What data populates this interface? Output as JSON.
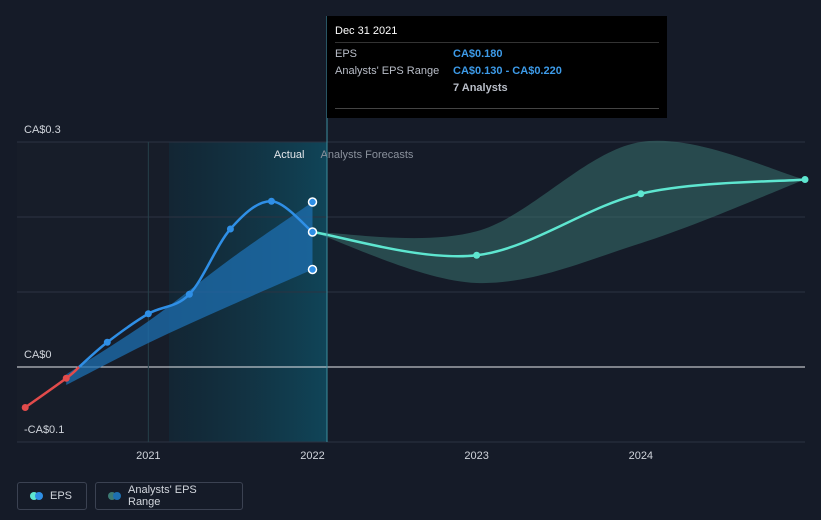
{
  "chart_data": {
    "type": "line",
    "title": "",
    "y_axis": {
      "labels": [
        "CA$0.3",
        "CA$0",
        "-CA$0.1"
      ],
      "ylim": [
        -0.1,
        0.3
      ]
    },
    "x_axis": {
      "labels": [
        "2021",
        "2022",
        "2023",
        "2024"
      ],
      "xlim": [
        2020.2,
        2025.0
      ]
    },
    "region_labels": {
      "actual": "Actual",
      "forecast": "Analysts Forecasts"
    },
    "series": [
      {
        "name": "EPS",
        "kind": "actual",
        "points": [
          {
            "x": 2020.25,
            "y": -0.054
          },
          {
            "x": 2020.5,
            "y": -0.015
          },
          {
            "x": 2020.75,
            "y": 0.033
          },
          {
            "x": 2021.0,
            "y": 0.071
          },
          {
            "x": 2021.25,
            "y": 0.097
          },
          {
            "x": 2021.5,
            "y": 0.184
          },
          {
            "x": 2021.75,
            "y": 0.221
          },
          {
            "x": 2022.0,
            "y": 0.18
          }
        ]
      },
      {
        "name": "EPS",
        "kind": "forecast",
        "points": [
          {
            "x": 2022.0,
            "y": 0.18
          },
          {
            "x": 2023.0,
            "y": 0.149
          },
          {
            "x": 2024.0,
            "y": 0.231
          },
          {
            "x": 2025.0,
            "y": 0.25
          }
        ]
      },
      {
        "name": "Analysts' EPS Range",
        "kind": "actual-range",
        "upper": [
          {
            "x": 2020.5,
            "y": -0.01
          },
          {
            "x": 2021.0,
            "y": 0.061
          },
          {
            "x": 2021.5,
            "y": 0.144
          },
          {
            "x": 2022.0,
            "y": 0.22
          }
        ],
        "lower": [
          {
            "x": 2020.5,
            "y": -0.024
          },
          {
            "x": 2021.0,
            "y": 0.032
          },
          {
            "x": 2021.5,
            "y": 0.082
          },
          {
            "x": 2022.0,
            "y": 0.13
          }
        ]
      },
      {
        "name": "Analysts' EPS Range",
        "kind": "forecast-range",
        "upper": [
          {
            "x": 2022.0,
            "y": 0.18
          },
          {
            "x": 2023.0,
            "y": 0.181
          },
          {
            "x": 2024.0,
            "y": 0.3
          },
          {
            "x": 2025.0,
            "y": 0.25
          }
        ],
        "lower": [
          {
            "x": 2022.0,
            "y": 0.18
          },
          {
            "x": 2023.0,
            "y": 0.112
          },
          {
            "x": 2024.0,
            "y": 0.165
          },
          {
            "x": 2025.0,
            "y": 0.25
          }
        ]
      }
    ],
    "range_markers": [
      {
        "x": 2022.0,
        "y": 0.22
      },
      {
        "x": 2022.0,
        "y": 0.13
      }
    ],
    "legend": [
      "EPS",
      "Analysts' EPS Range"
    ],
    "legend_position": "bottom-left"
  },
  "tooltip": {
    "date": "Dec 31 2021",
    "eps_label": "EPS",
    "eps_value": "CA$0.180",
    "range_label": "Analysts' EPS Range",
    "range_value": "CA$0.130 - CA$0.220",
    "analysts": "7 Analysts"
  },
  "legend": {
    "eps_label": "EPS",
    "range_label": "Analysts' EPS Range"
  },
  "colors": {
    "background": "#151b28",
    "actual_line": "#2f8fe6",
    "negative_line": "#e24b4b",
    "forecast_line": "#5ee6d0",
    "actual_band": "#1e6fb0",
    "forecast_band": "#3c7a74",
    "grid": "#2c3342"
  }
}
